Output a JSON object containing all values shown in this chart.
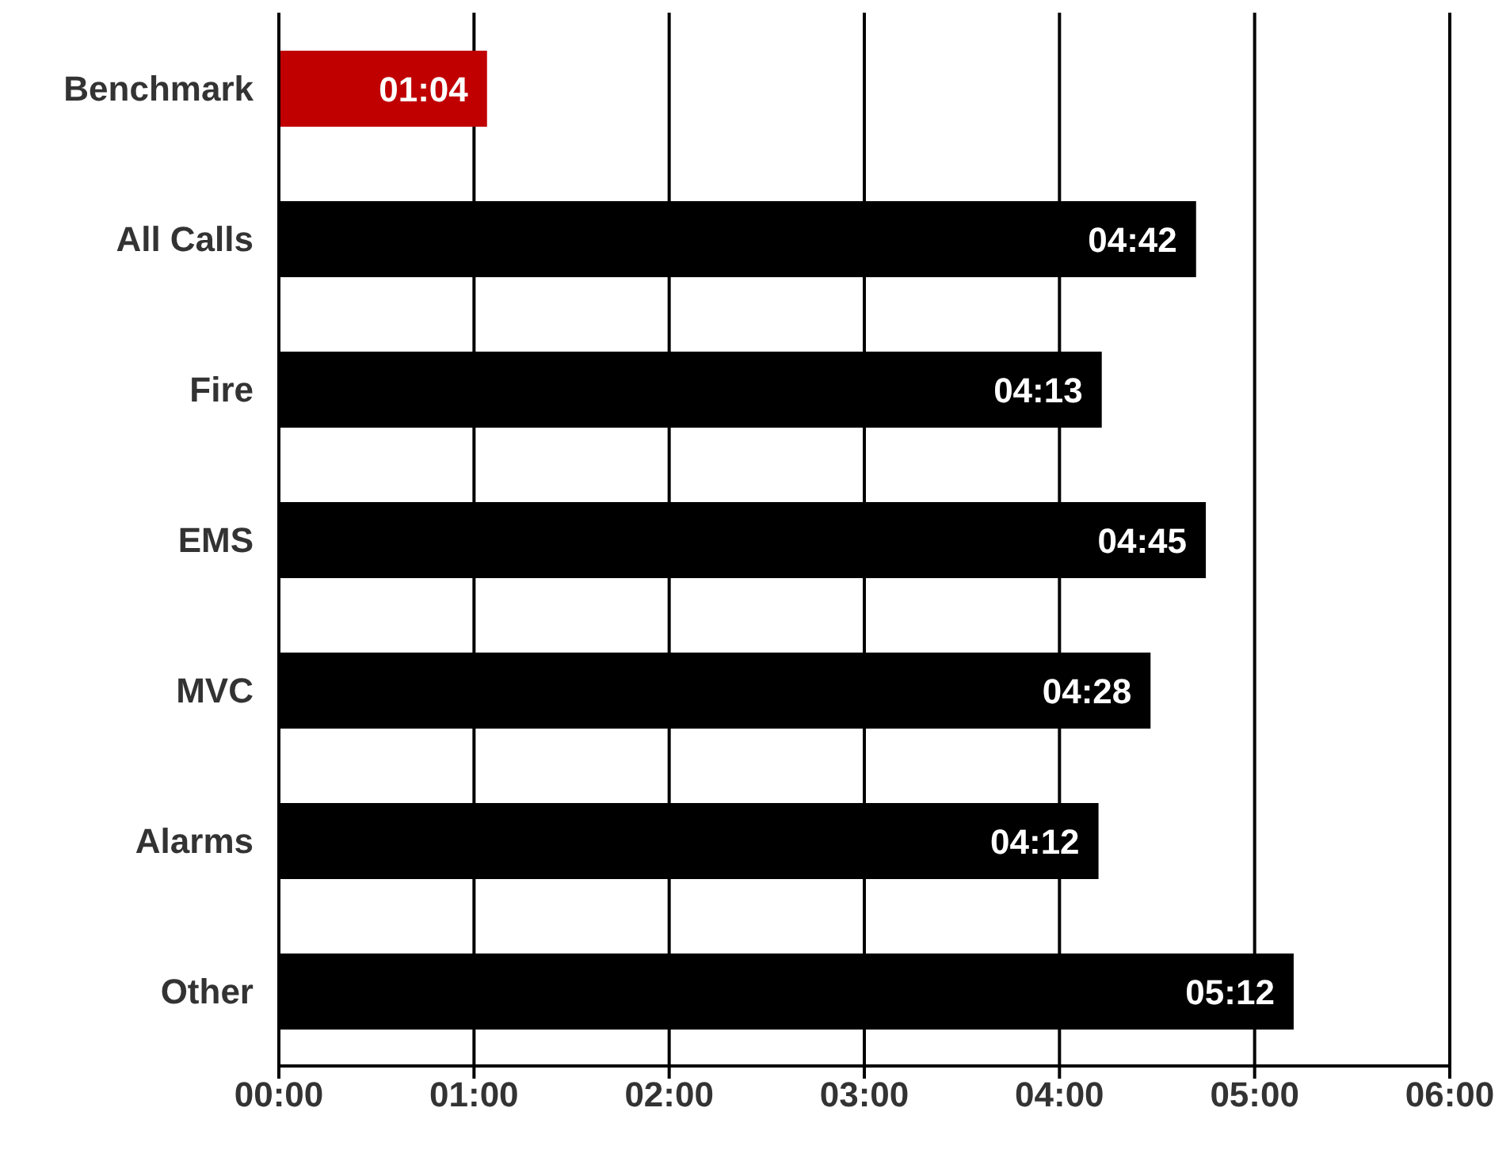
{
  "chart_data": {
    "type": "bar",
    "orientation": "horizontal",
    "categories": [
      "Benchmark",
      "All Calls",
      "Fire",
      "EMS",
      "MVC",
      "Alarms",
      "Other"
    ],
    "values": [
      64,
      282,
      253,
      285,
      268,
      252,
      312
    ],
    "colors": [
      "#c00000",
      "#000000",
      "#000000",
      "#000000",
      "#000000",
      "#000000",
      "#000000"
    ],
    "value_labels": [
      "01:04",
      "04:42",
      "04:13",
      "04:45",
      "04:28",
      "04:12",
      "05:12"
    ],
    "xlim": [
      0,
      360
    ],
    "xticks": [
      {
        "value": 0,
        "label": "00:00"
      },
      {
        "value": 60,
        "label": "01:00"
      },
      {
        "value": 120,
        "label": "02:00"
      },
      {
        "value": 180,
        "label": "03:00"
      },
      {
        "value": 240,
        "label": "04:00"
      },
      {
        "value": 300,
        "label": "05:00"
      },
      {
        "value": 360,
        "label": "06:00"
      }
    ],
    "grid": "x"
  }
}
